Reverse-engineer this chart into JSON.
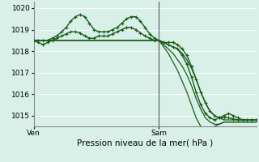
{
  "bg_color": "#d8f0e8",
  "grid_color": "#ffffff",
  "line_color": "#1a5c1a",
  "marker_color": "#1a5c1a",
  "xlabel": "Pression niveau de la mer( hPa )",
  "xlabel_fontsize": 7.5,
  "xlim": [
    0,
    48
  ],
  "ylim": [
    1014.5,
    1020.3
  ],
  "yticks": [
    1015,
    1016,
    1017,
    1018,
    1019,
    1020
  ],
  "xtick_labels": [
    "Ven",
    "Sam"
  ],
  "xtick_positions": [
    0,
    27
  ],
  "vline_x": 27,
  "series": [
    {
      "x": [
        0,
        1,
        2,
        3,
        4,
        5,
        6,
        7,
        8,
        9,
        10,
        11,
        12,
        13,
        14,
        15,
        16,
        17,
        18,
        19,
        20,
        21,
        22,
        23,
        24,
        25,
        26,
        27,
        28,
        29,
        30,
        31,
        32,
        33,
        34,
        35,
        36,
        37,
        38,
        39,
        40,
        41,
        42,
        43,
        44,
        45,
        46,
        47,
        48
      ],
      "y": [
        1018.5,
        1018.5,
        1018.5,
        1018.5,
        1018.6,
        1018.7,
        1018.9,
        1019.1,
        1019.4,
        1019.6,
        1019.7,
        1019.6,
        1019.3,
        1019.0,
        1018.9,
        1018.9,
        1018.9,
        1019.0,
        1019.1,
        1019.3,
        1019.5,
        1019.6,
        1019.6,
        1019.4,
        1019.1,
        1018.8,
        1018.6,
        1018.5,
        1018.4,
        1018.3,
        1018.2,
        1018.1,
        1017.8,
        1017.4,
        1016.8,
        1016.1,
        1015.5,
        1015.1,
        1014.9,
        1014.8,
        1014.9,
        1015.0,
        1015.1,
        1015.0,
        1014.9,
        1014.8,
        1014.8,
        1014.8,
        1014.8
      ],
      "marker": true,
      "markersize": 3.0,
      "linewidth": 1.0
    },
    {
      "x": [
        0,
        1,
        2,
        3,
        4,
        5,
        6,
        7,
        8,
        9,
        10,
        11,
        12,
        13,
        14,
        15,
        16,
        17,
        18,
        19,
        20,
        21,
        22,
        23,
        24,
        25,
        26,
        27,
        28,
        29,
        30,
        31,
        32,
        33,
        34,
        35,
        36,
        37,
        38,
        39,
        40,
        41,
        42,
        43,
        44,
        45,
        46,
        47,
        48
      ],
      "y": [
        1018.5,
        1018.5,
        1018.5,
        1018.5,
        1018.5,
        1018.5,
        1018.5,
        1018.5,
        1018.5,
        1018.5,
        1018.5,
        1018.5,
        1018.5,
        1018.5,
        1018.5,
        1018.5,
        1018.5,
        1018.5,
        1018.5,
        1018.5,
        1018.5,
        1018.5,
        1018.5,
        1018.5,
        1018.5,
        1018.5,
        1018.5,
        1018.5,
        1018.4,
        1018.3,
        1018.2,
        1018.1,
        1017.9,
        1017.6,
        1017.2,
        1016.7,
        1016.1,
        1015.6,
        1015.2,
        1015.0,
        1014.9,
        1014.8,
        1014.8,
        1014.8,
        1014.8,
        1014.8,
        1014.8,
        1014.8,
        1014.8
      ],
      "marker": false,
      "linewidth": 0.9
    },
    {
      "x": [
        0,
        1,
        2,
        3,
        4,
        5,
        6,
        7,
        8,
        9,
        10,
        11,
        12,
        13,
        14,
        15,
        16,
        17,
        18,
        19,
        20,
        21,
        22,
        23,
        24,
        25,
        26,
        27,
        28,
        29,
        30,
        31,
        32,
        33,
        34,
        35,
        36,
        37,
        38,
        39,
        40,
        41,
        42,
        43,
        44,
        45,
        46,
        47,
        48
      ],
      "y": [
        1018.5,
        1018.5,
        1018.5,
        1018.5,
        1018.5,
        1018.5,
        1018.5,
        1018.5,
        1018.5,
        1018.5,
        1018.5,
        1018.5,
        1018.5,
        1018.5,
        1018.5,
        1018.5,
        1018.5,
        1018.5,
        1018.5,
        1018.5,
        1018.5,
        1018.5,
        1018.5,
        1018.5,
        1018.5,
        1018.5,
        1018.5,
        1018.5,
        1018.3,
        1018.1,
        1017.9,
        1017.6,
        1017.3,
        1016.9,
        1016.4,
        1015.8,
        1015.3,
        1014.9,
        1014.7,
        1014.6,
        1014.6,
        1014.7,
        1014.7,
        1014.7,
        1014.7,
        1014.7,
        1014.7,
        1014.7,
        1014.7
      ],
      "marker": false,
      "linewidth": 0.9
    },
    {
      "x": [
        0,
        1,
        2,
        3,
        4,
        5,
        6,
        7,
        8,
        9,
        10,
        11,
        12,
        13,
        14,
        15,
        16,
        17,
        18,
        19,
        20,
        21,
        22,
        23,
        24,
        25,
        26,
        27,
        28,
        29,
        30,
        31,
        32,
        33,
        34,
        35,
        36,
        37,
        38,
        39,
        40,
        41,
        42,
        43,
        44,
        45,
        46,
        47,
        48
      ],
      "y": [
        1018.5,
        1018.5,
        1018.5,
        1018.5,
        1018.5,
        1018.5,
        1018.5,
        1018.5,
        1018.5,
        1018.5,
        1018.5,
        1018.5,
        1018.5,
        1018.5,
        1018.5,
        1018.5,
        1018.5,
        1018.5,
        1018.5,
        1018.5,
        1018.5,
        1018.5,
        1018.5,
        1018.5,
        1018.5,
        1018.5,
        1018.5,
        1018.5,
        1018.2,
        1017.9,
        1017.5,
        1017.1,
        1016.6,
        1016.1,
        1015.5,
        1014.9,
        1014.5,
        1014.3,
        1014.4,
        1014.5,
        1014.6,
        1014.7,
        1014.7,
        1014.7,
        1014.7,
        1014.7,
        1014.7,
        1014.7,
        1014.7
      ],
      "marker": false,
      "linewidth": 0.9
    },
    {
      "x": [
        0,
        1,
        2,
        3,
        4,
        5,
        6,
        7,
        8,
        9,
        10,
        11,
        12,
        13,
        14,
        15,
        16,
        17,
        18,
        19,
        20,
        21,
        22,
        23,
        24,
        25,
        26,
        27,
        28,
        29,
        30,
        31,
        32,
        33,
        34,
        35,
        36,
        37,
        38,
        39,
        40,
        41,
        42,
        43,
        44,
        45,
        46,
        47,
        48
      ],
      "y": [
        1018.5,
        1018.4,
        1018.3,
        1018.4,
        1018.5,
        1018.6,
        1018.7,
        1018.8,
        1018.9,
        1018.9,
        1018.85,
        1018.7,
        1018.6,
        1018.6,
        1018.7,
        1018.7,
        1018.7,
        1018.8,
        1018.9,
        1019.0,
        1019.1,
        1019.1,
        1019.0,
        1018.85,
        1018.7,
        1018.6,
        1018.5,
        1018.5,
        1018.4,
        1018.4,
        1018.4,
        1018.3,
        1018.1,
        1017.8,
        1017.3,
        1016.7,
        1016.1,
        1015.6,
        1015.2,
        1015.0,
        1014.9,
        1014.9,
        1014.9,
        1014.85,
        1014.8,
        1014.8,
        1014.8,
        1014.8,
        1014.8
      ],
      "marker": true,
      "markersize": 2.5,
      "linewidth": 1.0
    }
  ]
}
